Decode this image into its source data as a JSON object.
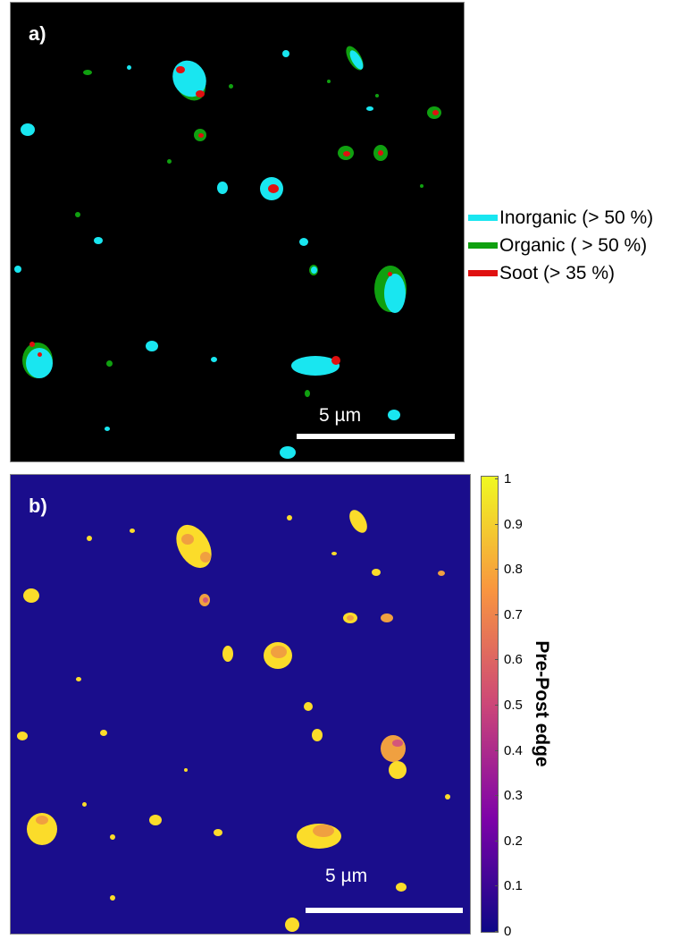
{
  "panel_a": {
    "label": "a)",
    "scale_bar": "5 µm",
    "legend": [
      {
        "label": "Inorganic (> 50 %)",
        "color": "#19e6f0"
      },
      {
        "label": "Organic ( > 50 %)",
        "color": "#10a010"
      },
      {
        "label": "Soot (> 35 %)",
        "color": "#e01010"
      }
    ]
  },
  "panel_b": {
    "label": "b)",
    "scale_bar": "5 µm"
  },
  "chart_data": {
    "type": "heatmap",
    "colorbar": {
      "label": "Pre-Post edge",
      "ticks": [
        "0",
        "0.1",
        "0.2",
        "0.3",
        "0.4",
        "0.5",
        "0.6",
        "0.7",
        "0.8",
        "0.9",
        "1"
      ],
      "range": [
        0,
        1
      ],
      "colors": [
        "#0d0887",
        "#7e03a8",
        "#cc4778",
        "#f89540",
        "#f0f921"
      ]
    }
  }
}
